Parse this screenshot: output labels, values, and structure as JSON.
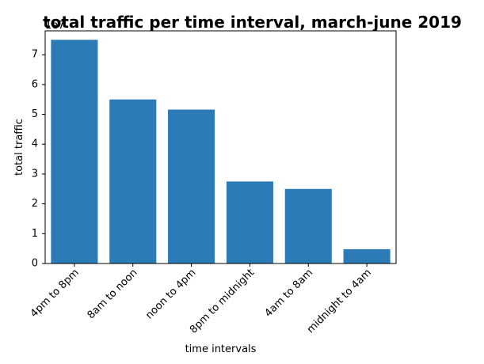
{
  "chart_data": {
    "type": "bar",
    "title": "total traffic per time interval, march-june 2019",
    "xlabel": "time intervals",
    "ylabel": "total traffic",
    "y_offset_label": "1e7",
    "categories": [
      "4pm to 8pm",
      "8am to noon",
      "noon to 4pm",
      "8pm to midnight",
      "4am to 8am",
      "midnight to 4am"
    ],
    "values": [
      75000000,
      55000000,
      51600000,
      27500000,
      25000000,
      4800000
    ],
    "ylim": [
      0,
      78000000
    ],
    "yticks": [
      0,
      10000000,
      20000000,
      30000000,
      40000000,
      50000000,
      60000000,
      70000000
    ],
    "ytick_labels": [
      "0",
      "1",
      "2",
      "3",
      "4",
      "5",
      "6",
      "7"
    ],
    "bar_color": "#2c7bb6",
    "grid": false,
    "legend": "none"
  }
}
